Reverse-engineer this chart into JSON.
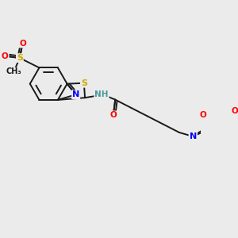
{
  "background_color": "#ebebeb",
  "bond_color": "#1a1a1a",
  "atom_colors": {
    "N": "#0000ff",
    "O": "#ff0000",
    "S": "#ccaa00",
    "H": "#4a9a9a",
    "C": "#1a1a1a"
  },
  "figsize": [
    3.0,
    3.0
  ],
  "dpi": 100,
  "lw": 1.4
}
